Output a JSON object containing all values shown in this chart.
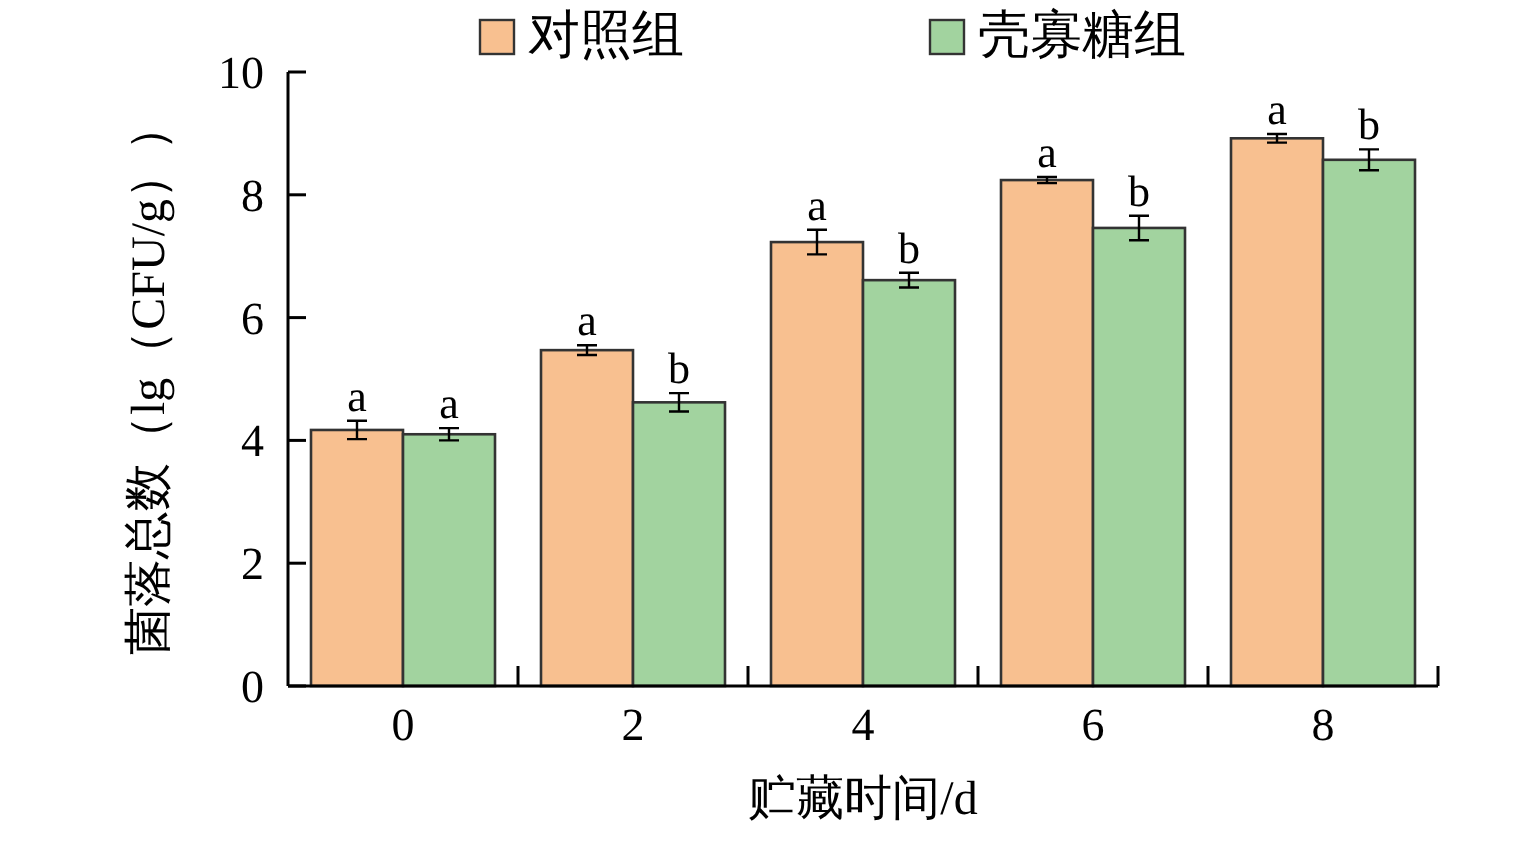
{
  "chart_data": {
    "type": "bar",
    "xlabel": "贮藏时间/d",
    "ylabel": "菌落总数（lg（CFU/g））",
    "categories": [
      "0",
      "2",
      "4",
      "6",
      "8"
    ],
    "ylim": [
      0,
      10
    ],
    "yticks": [
      0,
      2,
      4,
      6,
      8,
      10
    ],
    "legend": "top",
    "grid": false,
    "series": [
      {
        "name": "对照组",
        "color": "#f8c090",
        "values": [
          4.17,
          5.47,
          7.23,
          8.24,
          8.92
        ],
        "errors": [
          0.15,
          0.08,
          0.2,
          0.05,
          0.07
        ],
        "value_labels": [
          "a",
          "a",
          "a",
          "a",
          "a"
        ]
      },
      {
        "name": "壳寡糖组",
        "color": "#a2d39f",
        "values": [
          4.1,
          4.62,
          6.61,
          7.46,
          8.57
        ],
        "errors": [
          0.1,
          0.15,
          0.12,
          0.2,
          0.17
        ],
        "value_labels": [
          "a",
          "b",
          "b",
          "b",
          "b"
        ]
      }
    ]
  }
}
